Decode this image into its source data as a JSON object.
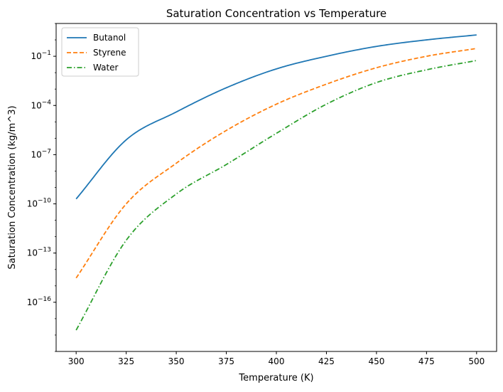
{
  "chart_data": {
    "type": "line",
    "title": "Saturation Concentration vs Temperature",
    "xlabel": "Temperature (K)",
    "ylabel": "Saturation Concentration (kg/m^3)",
    "yscale": "log",
    "xlim": [
      290,
      510
    ],
    "ylim": [
      1e-19,
      10
    ],
    "xticks": [
      300,
      325,
      350,
      375,
      400,
      425,
      450,
      475,
      500
    ],
    "yticks": [
      {
        "value": 1e-16,
        "base": "10",
        "exp": "−16"
      },
      {
        "value": 1e-13,
        "base": "10",
        "exp": "−13"
      },
      {
        "value": 1e-10,
        "base": "10",
        "exp": "−10"
      },
      {
        "value": 1e-07,
        "base": "10",
        "exp": "−7"
      },
      {
        "value": 0.0001,
        "base": "10",
        "exp": "−4"
      },
      {
        "value": 0.1,
        "base": "10",
        "exp": "−1"
      }
    ],
    "grid": false,
    "legend_position": "top-left",
    "x": [
      300,
      325,
      350,
      375,
      400,
      425,
      450,
      475,
      500
    ],
    "series": [
      {
        "name": "Butanol",
        "color": "#1f77b4",
        "style": "solid",
        "values": [
          2e-10,
          8e-07,
          4e-05,
          0.0012,
          0.017,
          0.1,
          0.4,
          1.0,
          2.0
        ]
      },
      {
        "name": "Styrene",
        "color": "#ff7f0e",
        "style": "dashed",
        "values": [
          3e-15,
          1e-10,
          3e-08,
          3e-06,
          0.00012,
          0.002,
          0.02,
          0.1,
          0.3
        ]
      },
      {
        "name": "Water",
        "color": "#2ca02c",
        "style": "dashdot",
        "values": [
          2e-18,
          6e-13,
          4e-10,
          2.5e-08,
          2e-06,
          0.00012,
          0.0025,
          0.015,
          0.055
        ]
      }
    ]
  }
}
